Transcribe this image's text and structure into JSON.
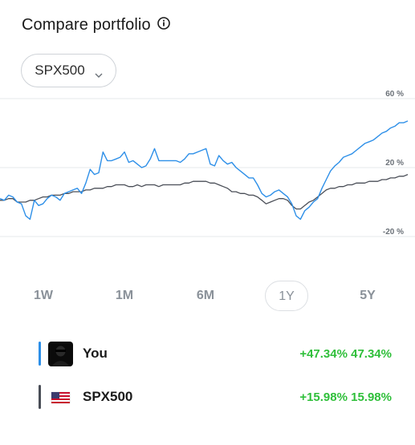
{
  "header": {
    "title": "Compare portfolio"
  },
  "compare_select": {
    "value": "SPX500"
  },
  "colors": {
    "you": "#2d8fe8",
    "spx": "#4a4e57",
    "positive": "#2fbf3a",
    "muted": "#8a9199"
  },
  "chart_data": {
    "type": "line",
    "yticks": [
      "60 %",
      "20 %",
      "-20 %"
    ],
    "ylim": [
      -20,
      60
    ],
    "grid": true,
    "series": [
      {
        "name": "You",
        "values": [
          2,
          1,
          4,
          3,
          0,
          -1,
          -8,
          -10,
          1,
          -2,
          -1,
          2,
          4,
          3,
          1,
          5,
          6,
          7,
          8,
          5,
          11,
          19,
          16,
          17,
          29,
          24,
          24,
          25,
          26,
          29,
          23,
          24,
          22,
          20,
          21,
          25,
          31,
          24,
          24,
          24,
          24,
          24,
          23,
          25,
          28,
          28,
          29,
          30,
          31,
          22,
          21,
          27,
          24,
          22,
          23,
          20,
          18,
          16,
          14,
          14,
          10,
          5,
          3,
          4,
          6,
          7,
          5,
          3,
          -1,
          -8,
          -10,
          -5,
          -3,
          0,
          2,
          8,
          13,
          18,
          21,
          23,
          26,
          27,
          28,
          30,
          32,
          34,
          35,
          36,
          38,
          40,
          41,
          43,
          44,
          46,
          46,
          47
        ]
      },
      {
        "name": "SPX500",
        "values": [
          1,
          1,
          2,
          2,
          0,
          0,
          0,
          1,
          1,
          2,
          3,
          3,
          4,
          4,
          4,
          5,
          5,
          6,
          6,
          6,
          7,
          7,
          8,
          8,
          8,
          9,
          9,
          10,
          10,
          10,
          9,
          9,
          10,
          9,
          10,
          10,
          10,
          9,
          10,
          10,
          10,
          10,
          10,
          11,
          11,
          12,
          12,
          12,
          12,
          11,
          11,
          10,
          9,
          8,
          6,
          6,
          5,
          5,
          4,
          4,
          3,
          1,
          -1,
          0,
          1,
          2,
          2,
          1,
          -2,
          -4,
          -4,
          -2,
          0,
          1,
          3,
          5,
          7,
          8,
          8,
          9,
          9,
          10,
          10,
          11,
          11,
          11,
          12,
          12,
          12,
          13,
          13,
          14,
          14,
          15,
          15,
          16
        ]
      }
    ]
  },
  "time_ranges": [
    "1W",
    "1M",
    "6M",
    "1Y",
    "5Y"
  ],
  "active_range": "1Y",
  "legend": [
    {
      "name": "You",
      "value": "+47.34% 47.34%"
    },
    {
      "name": "SPX500",
      "value": "+15.98% 15.98%"
    }
  ]
}
